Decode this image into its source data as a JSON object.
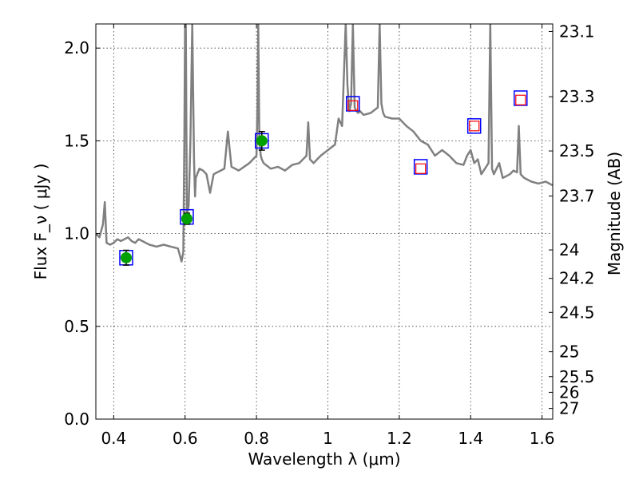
{
  "chart_data": {
    "type": "line",
    "title": "",
    "xlabel": "Wavelength  λ (μm)",
    "ylabel": "Flux  F_ν  ( μJy )",
    "ylabel_right": "Magnitude (AB)",
    "xlim": [
      0.35,
      1.63
    ],
    "ylim": [
      0.0,
      2.13
    ],
    "grid": true,
    "x_ticks": [
      0.4,
      0.6,
      0.8,
      1.0,
      1.2,
      1.4,
      1.6
    ],
    "x_tick_labels": [
      "0.4",
      "0.6",
      "0.8",
      "1",
      "1.2",
      "1.4",
      "1.6"
    ],
    "y_ticks": [
      0.0,
      0.5,
      1.0,
      1.5,
      2.0
    ],
    "y_tick_labels": [
      "0.0",
      "0.5",
      "1.0",
      "1.5",
      "2.0"
    ],
    "right_ticks": [
      "23.1",
      "23.3",
      "23.5",
      "23.7",
      "24",
      "24.2",
      "24.5",
      "25",
      "25.5",
      "26",
      "27"
    ],
    "colors": {
      "spectrum": "#808080",
      "model_box": "#0000ff",
      "observed_box": "#ff0000",
      "detection": "#00a000",
      "errorbar": "#000000"
    },
    "series": [
      {
        "type": "line",
        "x": [
          0.35,
          0.36,
          0.37,
          0.375,
          0.38,
          0.39,
          0.4,
          0.41,
          0.42,
          0.43,
          0.44,
          0.45,
          0.46,
          0.47,
          0.48,
          0.49,
          0.5,
          0.52,
          0.54,
          0.56,
          0.58,
          0.59,
          0.595,
          0.598,
          0.6,
          0.602,
          0.605,
          0.61,
          0.615,
          0.62,
          0.625,
          0.628,
          0.63,
          0.64,
          0.65,
          0.66,
          0.67,
          0.68,
          0.69,
          0.7,
          0.71,
          0.72,
          0.725,
          0.73,
          0.75,
          0.78,
          0.8,
          0.803,
          0.805,
          0.808,
          0.812,
          0.815,
          0.82,
          0.84,
          0.86,
          0.88,
          0.9,
          0.92,
          0.94,
          0.945,
          0.95,
          0.96,
          0.98,
          1.0,
          1.02,
          1.03,
          1.04,
          1.05,
          1.055,
          1.06,
          1.065,
          1.07,
          1.075,
          1.08,
          1.085,
          1.09,
          1.1,
          1.12,
          1.14,
          1.145,
          1.15,
          1.155,
          1.16,
          1.18,
          1.2,
          1.22,
          1.24,
          1.26,
          1.28,
          1.3,
          1.32,
          1.34,
          1.36,
          1.38,
          1.39,
          1.4,
          1.41,
          1.42,
          1.43,
          1.44,
          1.45,
          1.455,
          1.46,
          1.465,
          1.47,
          1.48,
          1.49,
          1.5,
          1.51,
          1.52,
          1.53,
          1.535,
          1.54,
          1.55,
          1.57,
          1.59,
          1.61,
          1.63
        ],
        "y": [
          1.0,
          0.98,
          1.05,
          1.17,
          0.95,
          0.94,
          0.95,
          0.97,
          0.96,
          0.97,
          0.98,
          0.96,
          0.95,
          0.97,
          0.96,
          0.95,
          0.94,
          0.93,
          0.94,
          0.93,
          0.92,
          0.85,
          0.9,
          1.5,
          2.13,
          2.13,
          1.1,
          1.15,
          1.5,
          2.13,
          1.4,
          1.2,
          1.3,
          1.35,
          1.34,
          1.32,
          1.22,
          1.32,
          1.33,
          1.34,
          1.35,
          1.55,
          1.45,
          1.36,
          1.34,
          1.38,
          1.42,
          1.7,
          2.13,
          1.5,
          1.42,
          1.4,
          1.38,
          1.35,
          1.36,
          1.34,
          1.37,
          1.38,
          1.42,
          1.6,
          1.4,
          1.38,
          1.42,
          1.45,
          1.48,
          1.62,
          1.58,
          2.13,
          1.8,
          1.66,
          1.7,
          2.13,
          1.68,
          1.66,
          1.65,
          1.66,
          1.64,
          1.65,
          1.68,
          2.13,
          1.7,
          1.65,
          1.63,
          1.62,
          1.62,
          1.58,
          1.55,
          1.5,
          1.48,
          1.42,
          1.45,
          1.42,
          1.38,
          1.37,
          1.42,
          1.45,
          1.38,
          1.4,
          1.32,
          1.35,
          1.38,
          2.13,
          1.35,
          1.32,
          1.34,
          1.38,
          1.3,
          1.31,
          1.32,
          1.34,
          1.33,
          1.58,
          1.32,
          1.3,
          1.28,
          1.27,
          1.28,
          1.26
        ]
      }
    ],
    "markers": {
      "model_boxes_blue": {
        "x": [
          0.435,
          0.605,
          0.815,
          1.07,
          1.26,
          1.41,
          1.54
        ],
        "y": [
          0.87,
          1.09,
          1.5,
          1.7,
          1.36,
          1.58,
          1.73
        ]
      },
      "observed_boxes_red": {
        "x": [
          1.07,
          1.26,
          1.41,
          1.54
        ],
        "y": [
          1.69,
          1.35,
          1.58,
          1.72
        ]
      },
      "detections_green": {
        "x": [
          0.435,
          0.605,
          0.815
        ],
        "y": [
          0.87,
          1.08,
          1.5
        ],
        "err": [
          0.04,
          0.03,
          0.05
        ]
      }
    }
  }
}
